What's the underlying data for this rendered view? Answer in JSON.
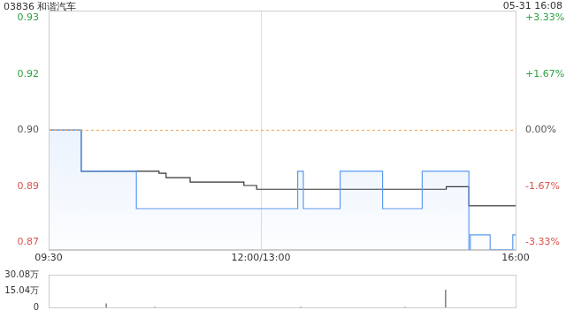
{
  "chart_data": [
    {
      "type": "line",
      "title": "03836 和谐汽车",
      "subtitle": "05-31 16:08",
      "grid": true,
      "x": [
        0,
        23,
        62,
        78,
        83,
        100,
        138,
        147,
        176,
        180,
        206,
        236,
        264,
        281,
        297,
        298,
        312,
        328,
        330
      ],
      "xlim": [
        0,
        330
      ],
      "xticks": [
        {
          "value": 0,
          "label": "09:30"
        },
        {
          "value": 150,
          "label": "12:00/13:00"
        },
        {
          "value": 330,
          "label": "16:00"
        }
      ],
      "ylim": [
        0.868,
        0.932
      ],
      "yticks": [
        0.87,
        {
          "value": 0.885,
          "label": "0.89"
        },
        {
          "value": 0.9,
          "label": "0.90"
        },
        {
          "value": 0.915,
          "label": "0.92"
        },
        0.93
      ],
      "y2lim": [
        -3.556,
        3.556
      ],
      "y2ticks": [
        {
          "value": -3.33,
          "label": "-3.33%"
        },
        {
          "value": -1.67,
          "label": "-1.67%"
        },
        {
          "value": 0,
          "label": "0.00%"
        },
        {
          "value": 1.67,
          "label": "+1.67%"
        },
        {
          "value": 3.33,
          "label": "+3.33%"
        }
      ],
      "reference": {
        "value": 0.9,
        "color": "#f0a050",
        "line_style": "dashed"
      },
      "series": [
        {
          "color": "#5b9bf0",
          "line_style": "stepped",
          "values": [
            0.9,
            0.889,
            0.879,
            0.879,
            0.879,
            0.879,
            0.879,
            0.879,
            0.889,
            0.879,
            0.889,
            0.879,
            0.889,
            0.889,
            0.868,
            0.872,
            0.868,
            0.872,
            0.872
          ]
        },
        {
          "color": "#333333",
          "line_style": "stepped",
          "values": [
            0.9,
            0.889,
            0.889,
            0.8885,
            0.8873,
            0.8861,
            0.8852,
            0.8842,
            0.8842,
            0.8842,
            0.8842,
            0.8842,
            0.8842,
            0.8849,
            0.8798,
            0.8798,
            0.8798,
            0.8798,
            0.8798
          ]
        }
      ]
    },
    {
      "type": "bar",
      "tick_labels": "y",
      "color": "#888888",
      "x": [
        23,
        62,
        180,
        264,
        297
      ],
      "values": [
        34000,
        3000,
        3000,
        3000,
        160000
      ],
      "xlim": [
        0,
        330
      ],
      "ylim": [
        0,
        300800
      ],
      "yticks": [
        0,
        {
          "value": 150400,
          "label": "15.04万"
        },
        {
          "value": 300800,
          "label": "30.08万"
        }
      ]
    }
  ]
}
